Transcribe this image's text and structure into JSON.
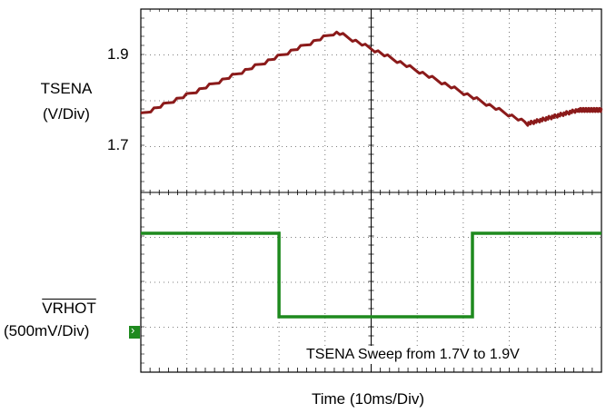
{
  "chart_data": [
    {
      "type": "line",
      "panel": "top",
      "series": [
        {
          "name": "TSENA",
          "color": "#8b1a1a",
          "x": [
            0,
            42.5,
            84,
            95,
            100
          ],
          "values": [
            1.72,
            1.9,
            1.7,
            1.73,
            1.73
          ]
        }
      ],
      "ylabel": "TSENA",
      "yunit": "(V/Div)",
      "ytick_labels": [
        "1.9",
        "1.7"
      ],
      "yticks": [
        1.9,
        1.7
      ],
      "xlim": [
        0,
        100
      ],
      "ylim": [
        1.55,
        1.95
      ],
      "grid": true
    },
    {
      "type": "line",
      "panel": "bottom",
      "series": [
        {
          "name": "VRHOT",
          "color": "#1e8a1e",
          "x": [
            0,
            30,
            30,
            72,
            72,
            100
          ],
          "values": [
            1,
            1,
            0,
            0,
            1,
            1
          ]
        }
      ],
      "ylabel": "VRHOT",
      "yunit": "(500mV/Div)",
      "xlim": [
        0,
        100
      ],
      "grid": true
    }
  ],
  "annotation": "TSENA Sweep from 1.7V to 1.9V",
  "xlabel": "Time  (10ms/Div)",
  "colors": {
    "grid": "#555555",
    "frame": "#000000",
    "marker": "#1e8a1e"
  },
  "marker_icon": "ground-marker-arrow"
}
